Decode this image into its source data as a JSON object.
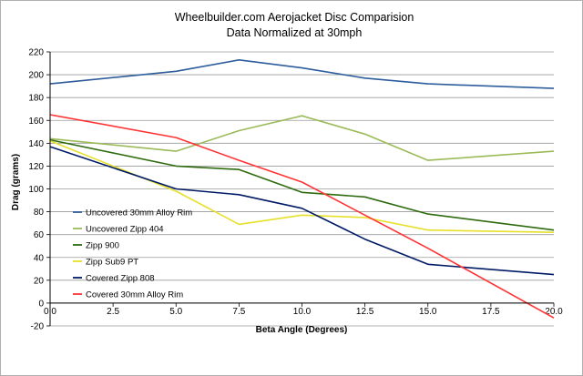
{
  "chart_data": {
    "type": "line",
    "title": "Wheelbuilder.com Aerojacket Disc Comparision",
    "subtitle": "Data Normalized at 30mph",
    "xlabel": "Beta Angle (Degrees)",
    "ylabel": "Drag (grams)",
    "x": [
      0,
      5,
      7.5,
      10,
      12.5,
      15,
      20
    ],
    "xlim": [
      0,
      20
    ],
    "ylim": [
      -20,
      220
    ],
    "x_ticks": [
      "0.0",
      "2.5",
      "5.0",
      "7.5",
      "10.0",
      "12.5",
      "15.0",
      "17.5",
      "20.0"
    ],
    "y_ticks": [
      "-20",
      "0",
      "20",
      "40",
      "60",
      "80",
      "100",
      "120",
      "140",
      "160",
      "180",
      "200",
      "220"
    ],
    "grid": "horizontal",
    "legend_position": "center-left",
    "series": [
      {
        "name": "Uncovered 30mm Alloy Rim",
        "color": "#2e5d9c",
        "points": [
          [
            0,
            192
          ],
          [
            5,
            203
          ],
          [
            7.5,
            213
          ],
          [
            10,
            206
          ],
          [
            12.5,
            197
          ],
          [
            15,
            192
          ],
          [
            20,
            188
          ]
        ]
      },
      {
        "name": "Uncovered Zipp 404",
        "color": "#9bbb59",
        "points": [
          [
            0,
            144
          ],
          [
            5,
            133
          ],
          [
            7.5,
            151
          ],
          [
            10,
            164
          ],
          [
            12.5,
            148
          ],
          [
            15,
            125
          ],
          [
            20,
            133
          ]
        ]
      },
      {
        "name": "Zipp 900",
        "color": "#2e6b0f",
        "points": [
          [
            0,
            143
          ],
          [
            5,
            120
          ],
          [
            7.5,
            117
          ],
          [
            10,
            97
          ],
          [
            12.5,
            93
          ],
          [
            15,
            78
          ],
          [
            20,
            64
          ]
        ]
      },
      {
        "name": "Zipp Sub9 PT",
        "color": "#e6e02a",
        "points": [
          [
            0,
            142
          ],
          [
            5,
            98
          ],
          [
            7.5,
            69
          ],
          [
            10,
            77
          ],
          [
            12.5,
            75
          ],
          [
            15,
            64
          ],
          [
            20,
            62
          ]
        ]
      },
      {
        "name": "Covered Zipp 808",
        "color": "#001a66",
        "points": [
          [
            0,
            137
          ],
          [
            5,
            100
          ],
          [
            7.5,
            95
          ],
          [
            10,
            83
          ],
          [
            12.5,
            56
          ],
          [
            15,
            34
          ],
          [
            20,
            25
          ]
        ]
      },
      {
        "name": "Covered 30mm Alloy Rim",
        "color": "#ff3333",
        "points": [
          [
            0,
            165
          ],
          [
            5,
            145
          ],
          [
            7.5,
            125
          ],
          [
            10,
            106
          ],
          [
            12.5,
            77
          ],
          [
            15,
            48
          ],
          [
            20,
            -13
          ]
        ]
      }
    ]
  }
}
